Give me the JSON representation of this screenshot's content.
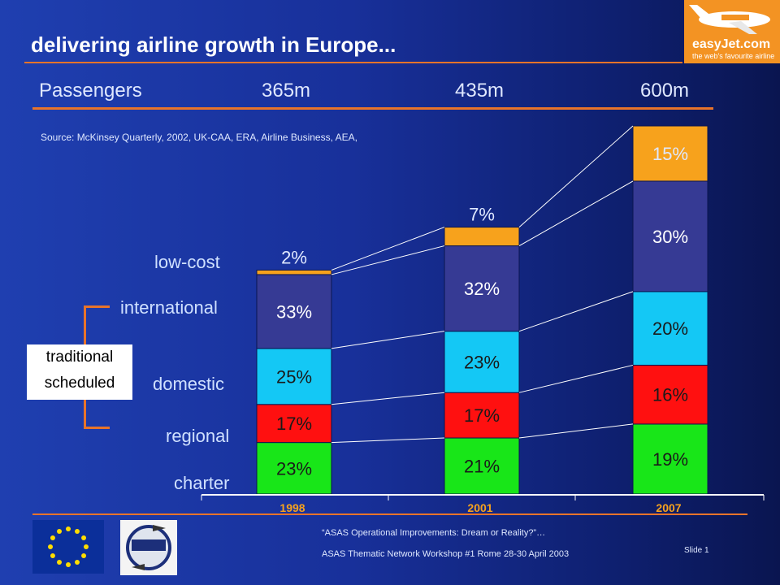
{
  "title": "delivering airline growth in Europe...",
  "logo": {
    "text": "easyJet.com",
    "tagline": "the web's favourite airline"
  },
  "passengers": {
    "label": "Passengers",
    "values": [
      "365m",
      "435m",
      "600m"
    ]
  },
  "source": "Source: McKinsey Quarterly, 2002, UK-CAA, ERA, Airline Business, AEA,",
  "category_labels": {
    "low_cost": "low-cost",
    "international": "international",
    "domestic": "domestic",
    "regional": "regional",
    "charter": "charter"
  },
  "bracket_label_line1": "traditional",
  "bracket_label_line2": "scheduled",
  "chart_data": {
    "type": "bar",
    "stacked": true,
    "categories": [
      "1998",
      "2001",
      "2007"
    ],
    "series": [
      {
        "name": "charter",
        "values": [
          23,
          21,
          19
        ],
        "labels": [
          "23%",
          "21%",
          "19%"
        ],
        "color": "#18e618"
      },
      {
        "name": "regional",
        "values": [
          17,
          17,
          16
        ],
        "labels": [
          "17%",
          "17%",
          "16%"
        ],
        "color": "#ff1010"
      },
      {
        "name": "domestic",
        "values": [
          25,
          23,
          20
        ],
        "labels": [
          "25%",
          "23%",
          "20%"
        ],
        "color": "#14c8f5"
      },
      {
        "name": "international",
        "values": [
          33,
          32,
          30
        ],
        "labels": [
          "33%",
          "32%",
          "30%"
        ],
        "color": "#363a94"
      },
      {
        "name": "low-cost",
        "values": [
          2,
          7,
          15
        ],
        "labels": [
          "2%",
          "7%",
          "15%"
        ],
        "color": "#f7a21c"
      }
    ],
    "passengers_millions": [
      365,
      435,
      600
    ]
  },
  "footer": {
    "line1": "“ASAS Operational Improvements: Dream or Reality?”…",
    "line2": "ASAS Thematic Network Workshop #1 Rome 28-30 April 2003",
    "slide": "Slide 1"
  }
}
